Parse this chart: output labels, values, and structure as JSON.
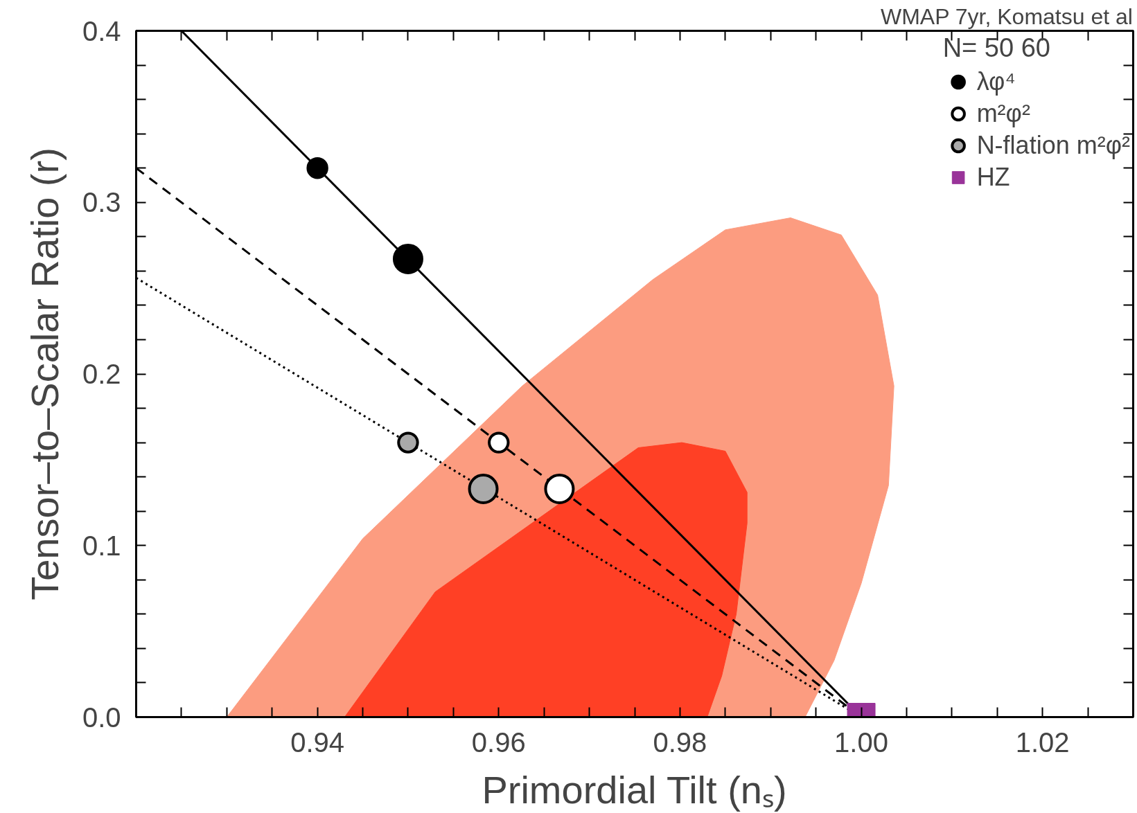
{
  "chart_data": {
    "type": "scatter",
    "title": "WMAP 7yr, Komatsu et al",
    "xlabel": "Primordial Tilt (nₛ)",
    "ylabel": "Tensor–to–Scalar Ratio (r)",
    "legend_title": "N= 50 60",
    "legend": "top right",
    "grid": false,
    "xlim": [
      0.92,
      1.03
    ],
    "ylim": [
      0.0,
      0.4
    ],
    "xticks": [
      {
        "value": 0.925,
        "label": null
      },
      {
        "value": 0.93,
        "label": null
      },
      {
        "value": 0.935,
        "label": null
      },
      {
        "value": 0.94,
        "label": "0.94"
      },
      {
        "value": 0.945,
        "label": null
      },
      {
        "value": 0.95,
        "label": null
      },
      {
        "value": 0.955,
        "label": null
      },
      {
        "value": 0.96,
        "label": "0.96"
      },
      {
        "value": 0.965,
        "label": null
      },
      {
        "value": 0.97,
        "label": null
      },
      {
        "value": 0.975,
        "label": null
      },
      {
        "value": 0.98,
        "label": "0.98"
      },
      {
        "value": 0.985,
        "label": null
      },
      {
        "value": 0.99,
        "label": null
      },
      {
        "value": 0.995,
        "label": null
      },
      {
        "value": 1.0,
        "label": "1.00"
      },
      {
        "value": 1.005,
        "label": null
      },
      {
        "value": 1.01,
        "label": null
      },
      {
        "value": 1.015,
        "label": null
      },
      {
        "value": 1.02,
        "label": "1.02"
      },
      {
        "value": 1.025,
        "label": null
      }
    ],
    "yticks": [
      {
        "value": 0.0,
        "label": "0.0"
      },
      {
        "value": 0.02,
        "label": null
      },
      {
        "value": 0.04,
        "label": null
      },
      {
        "value": 0.06,
        "label": null
      },
      {
        "value": 0.08,
        "label": null
      },
      {
        "value": 0.1,
        "label": "0.1"
      },
      {
        "value": 0.12,
        "label": null
      },
      {
        "value": 0.14,
        "label": null
      },
      {
        "value": 0.16,
        "label": null
      },
      {
        "value": 0.18,
        "label": null
      },
      {
        "value": 0.2,
        "label": "0.2"
      },
      {
        "value": 0.22,
        "label": null
      },
      {
        "value": 0.24,
        "label": null
      },
      {
        "value": 0.26,
        "label": null
      },
      {
        "value": 0.28,
        "label": null
      },
      {
        "value": 0.3,
        "label": "0.3"
      },
      {
        "value": 0.32,
        "label": null
      },
      {
        "value": 0.34,
        "label": null
      },
      {
        "value": 0.36,
        "label": null
      },
      {
        "value": 0.38,
        "label": null
      },
      {
        "value": 0.4,
        "label": "0.4"
      }
    ],
    "series": [
      {
        "type": "area",
        "color": "#fc9c80",
        "x": [
          0.93,
          0.945,
          0.9626,
          0.977,
          0.985,
          0.9922,
          0.9978,
          1.0018,
          1.0036,
          1.003,
          1.0,
          0.997,
          0.9938
        ],
        "values": [
          0.0,
          0.104,
          0.193,
          0.255,
          0.284,
          0.291,
          0.281,
          0.246,
          0.193,
          0.135,
          0.078,
          0.033,
          0.0
        ]
      },
      {
        "type": "area",
        "color": "#ff4025",
        "x": [
          0.943,
          0.953,
          0.9754,
          0.9802,
          0.985,
          0.9874,
          0.9874,
          0.9862,
          0.9846,
          0.983
        ],
        "values": [
          0.0,
          0.073,
          0.157,
          0.16,
          0.155,
          0.131,
          0.113,
          0.06,
          0.024,
          0.0
        ]
      },
      {
        "type": "line",
        "color": "#000000",
        "line_style": "solid",
        "x": [
          0.925,
          1.0
        ],
        "values": [
          0.4,
          0.0
        ]
      },
      {
        "type": "line",
        "color": "#000000",
        "line_style": "dashed",
        "x": [
          0.92,
          1.0
        ],
        "values": [
          0.32,
          0.0
        ]
      },
      {
        "type": "line",
        "color": "#000000",
        "line_style": "dotted",
        "x": [
          0.92,
          1.0
        ],
        "values": [
          0.256,
          0.0
        ]
      },
      {
        "type": "bubble",
        "name": "λφ⁴",
        "color": "#000000",
        "x": [
          0.94,
          0.95
        ],
        "values": [
          0.32,
          0.267
        ],
        "sizes": [
          0.47,
          1
        ]
      },
      {
        "type": "bubble",
        "name": "m²φ²",
        "color": "#ffffff",
        "x": [
          0.96,
          0.9667
        ],
        "values": [
          0.16,
          0.133
        ],
        "sizes": [
          0.47,
          1
        ]
      },
      {
        "type": "bubble",
        "name": "N-flation m²φ²",
        "color": "#aaaaaa",
        "x": [
          0.95,
          0.9583
        ],
        "values": [
          0.16,
          0.133
        ],
        "sizes": [
          0.47,
          1
        ]
      },
      {
        "name": "HZ",
        "marker": "square",
        "color": "#993399",
        "x": [
          1.0
        ],
        "values": [
          0.0
        ]
      }
    ]
  }
}
